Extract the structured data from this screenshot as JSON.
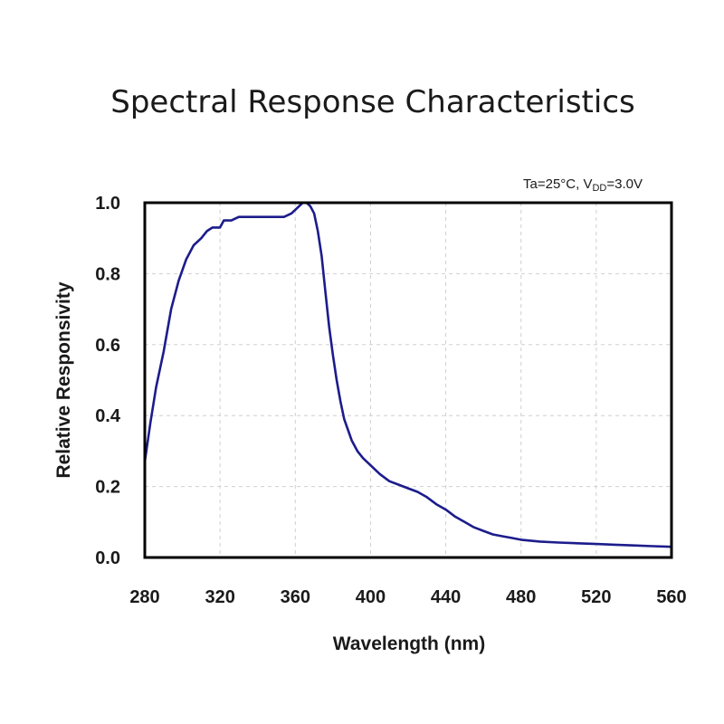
{
  "chart_data": {
    "type": "line",
    "title": "Spectral Response Characteristics",
    "condition": {
      "prefix": "Ta=25°C, V",
      "subscript": "DD",
      "suffix": "=3.0V"
    },
    "xlabel": "Wavelength (nm)",
    "ylabel": "Relative Responsivity",
    "xlim": [
      280,
      560
    ],
    "ylim": [
      0.0,
      1.0
    ],
    "xticks": [
      280,
      320,
      360,
      400,
      440,
      480,
      520,
      560
    ],
    "yticks": [
      "0.0",
      "0.2",
      "0.4",
      "0.6",
      "0.8",
      "1.0"
    ],
    "grid": true,
    "line_color": "#1c1c8c",
    "series": [
      {
        "name": "Relative Responsivity",
        "x": [
          280,
          283,
          286,
          290,
          294,
          298,
          302,
          306,
          310,
          313,
          316,
          320,
          322,
          326,
          330,
          334,
          338,
          342,
          346,
          350,
          354,
          358,
          362,
          364,
          366,
          368,
          370,
          372,
          374,
          376,
          378,
          380,
          382,
          384,
          386,
          388,
          390,
          393,
          396,
          400,
          405,
          410,
          415,
          420,
          425,
          430,
          435,
          440,
          445,
          450,
          455,
          460,
          465,
          470,
          475,
          480,
          490,
          500,
          510,
          520,
          530,
          540,
          550,
          560
        ],
        "y": [
          0.27,
          0.38,
          0.48,
          0.58,
          0.7,
          0.78,
          0.84,
          0.88,
          0.9,
          0.92,
          0.93,
          0.93,
          0.95,
          0.95,
          0.96,
          0.96,
          0.96,
          0.96,
          0.96,
          0.96,
          0.96,
          0.97,
          0.99,
          1.0,
          1.0,
          0.99,
          0.97,
          0.92,
          0.85,
          0.75,
          0.65,
          0.57,
          0.5,
          0.44,
          0.39,
          0.36,
          0.33,
          0.3,
          0.28,
          0.26,
          0.235,
          0.215,
          0.205,
          0.195,
          0.185,
          0.17,
          0.15,
          0.135,
          0.115,
          0.1,
          0.085,
          0.075,
          0.065,
          0.06,
          0.055,
          0.05,
          0.045,
          0.042,
          0.04,
          0.038,
          0.036,
          0.034,
          0.032,
          0.03
        ]
      }
    ]
  }
}
